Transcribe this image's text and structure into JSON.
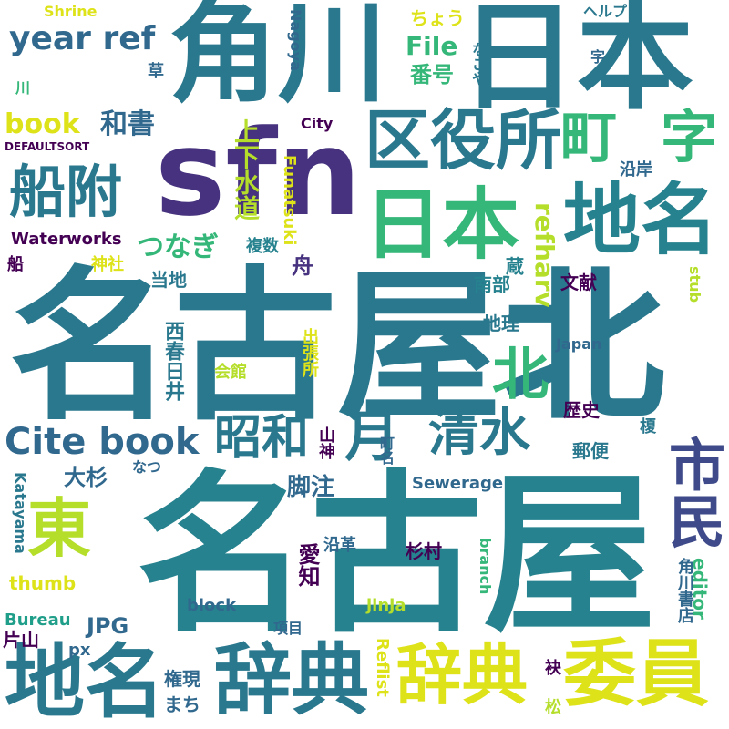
{
  "colors": {
    "background": "#ffffff",
    "teal": "#26828e",
    "dark_teal": "#2a788e",
    "blue": "#31688e",
    "indigo": "#3e4a89",
    "purple": "#46327e",
    "deep_purple": "#440154",
    "green": "#35b779",
    "mid_green": "#1f9e89",
    "lime": "#6ece58",
    "light_lime": "#b5de2b",
    "yellow": "#dde318",
    "bright_yellow": "#fde725"
  },
  "words": {
    "nagoya_big": "名古屋",
    "nagoya_kita": "名古屋北",
    "sfn": "sfn",
    "kadokawa": "角川",
    "nihon_top": "日本",
    "ku_yakusho": "区役所",
    "nihon_mid": "日本",
    "chimei_right": "地名",
    "chimei_bottom": "地名",
    "jiten_left": "辞典",
    "jiten_mid": "辞典",
    "iin": "委員",
    "funatsuke": "船附",
    "cho": "町",
    "aza_big": "字",
    "kita": "北",
    "shimizu": "清水",
    "showa": "昭和",
    "tsuki": "月",
    "higashi": "東",
    "shimin": "市民",
    "cite_book": "Cite book",
    "year_ref": "year ref",
    "book": "book",
    "washo": "和書",
    "file": "File",
    "bango": "番号",
    "tsunagi": "つなぎ",
    "jogesuido": "上下水道",
    "refharv": "refharv",
    "funatsuki": "Funatsuki",
    "waterworks": "Waterworks",
    "jinja": "神社",
    "fukusu": "複数",
    "fune": "舟",
    "kura": "蔵",
    "nanbu": "南部",
    "bunken": "文献",
    "chiri": "地理",
    "touchi": "当地",
    "nishi_kasugai": "西春日井",
    "kaikan": "会館",
    "shucchojo": "出張所",
    "yamaichi": "山神",
    "machina": "町名",
    "japan": "Japan",
    "rekishi": "歴史",
    "yubin": "郵便",
    "osugi": "大杉",
    "kyakuchu": "脚注",
    "natsu": "なつ",
    "sewerage": "Sewerage",
    "aichi": "愛知",
    "enkaku": "沿革",
    "sugimura": "杉村",
    "branch": "branch",
    "katayama_en": "Katayama",
    "thumb": "thumb",
    "block": "block",
    "jinja_en": "jinja",
    "kadokawa_shoten": "角川書店",
    "editor": "editor",
    "bureau": "Bureau",
    "jpg": "JPG",
    "katayama": "片山",
    "px": "px",
    "koumoku": "項目",
    "reflist": "Reflist",
    "gongen": "権現",
    "machi": "まち",
    "matsu": "松",
    "fusuma": "袂",
    "shrine": "Shrine",
    "nagoya_en": "Nagoya",
    "city": "City",
    "defaultsort": "DEFAULTSORT",
    "kusa": "草",
    "kawa": "川",
    "help": "ヘルプ",
    "chou": "ちょう",
    "nagoya_kana": "なごや",
    "aza_small": "字",
    "engan": "沿岸",
    "stub": "stub",
    "fune_small": "船",
    "enoki": "榎",
    "ref_rot": "ref"
  }
}
